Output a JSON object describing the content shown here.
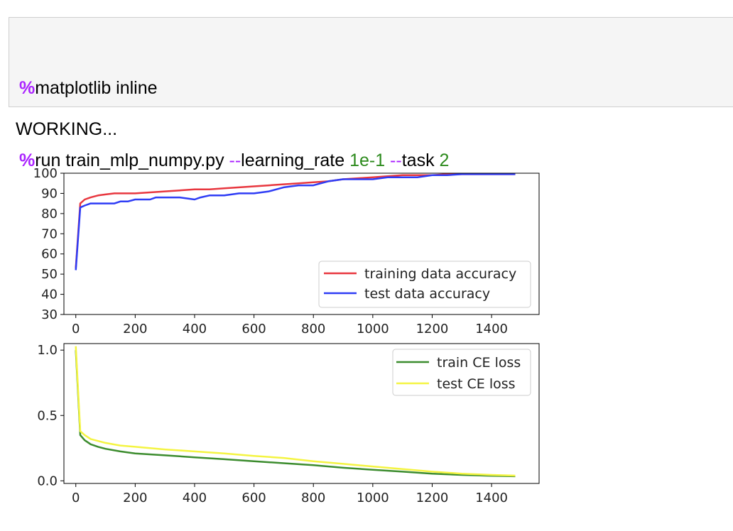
{
  "cell": {
    "line1": {
      "magic": "%",
      "cmd": "matplotlib inline"
    },
    "line2": {
      "magic": "%",
      "cmd": "run train_mlp_numpy.py ",
      "flag1": "--",
      "arg1": "learning_rate ",
      "val1": "1e-1",
      "flag2": " --",
      "arg2": "task ",
      "val2": "2"
    }
  },
  "output": {
    "status_text": "WORKING..."
  },
  "chart_data": [
    {
      "type": "line",
      "xlim": [
        -40,
        1560
      ],
      "ylim": [
        30,
        100
      ],
      "xticks": [
        0,
        200,
        400,
        600,
        800,
        1000,
        1200,
        1400
      ],
      "yticks": [
        30,
        40,
        50,
        60,
        70,
        80,
        90,
        100
      ],
      "legend_position": "lower-right",
      "series": [
        {
          "name": "training data accuracy",
          "color": "#e8373f",
          "x": [
            0,
            15,
            30,
            50,
            75,
            100,
            130,
            150,
            175,
            200,
            250,
            300,
            350,
            400,
            450,
            500,
            550,
            600,
            650,
            700,
            750,
            800,
            850,
            900,
            950,
            1000,
            1050,
            1100,
            1150,
            1200,
            1250,
            1300,
            1350,
            1400,
            1450,
            1480
          ],
          "y": [
            53,
            85,
            87,
            88,
            89,
            89.5,
            90,
            90,
            90,
            90,
            90.5,
            91,
            91.5,
            92,
            92,
            92.5,
            93,
            93.5,
            94,
            94.5,
            95,
            95.5,
            96,
            97,
            97.5,
            98,
            98.5,
            99,
            99,
            99,
            99.5,
            99.5,
            99.5,
            99.5,
            99.5,
            99.5
          ]
        },
        {
          "name": "test data accuracy",
          "color": "#2e3cf5",
          "x": [
            0,
            15,
            30,
            50,
            75,
            100,
            130,
            150,
            175,
            200,
            250,
            270,
            300,
            350,
            400,
            420,
            450,
            500,
            550,
            600,
            650,
            700,
            750,
            800,
            850,
            900,
            950,
            1000,
            1050,
            1100,
            1150,
            1200,
            1250,
            1300,
            1350,
            1400,
            1450,
            1480
          ],
          "y": [
            52,
            83,
            84,
            85,
            85,
            85,
            85,
            86,
            86,
            87,
            87,
            88,
            88,
            88,
            87,
            88,
            89,
            89,
            90,
            90,
            91,
            93,
            94,
            94,
            96,
            97,
            97,
            97,
            98,
            98,
            98,
            99,
            99,
            99.5,
            99.5,
            99.5,
            99.5,
            99.5
          ]
        }
      ]
    },
    {
      "type": "line",
      "xlim": [
        -40,
        1560
      ],
      "ylim": [
        -0.02,
        1.05
      ],
      "xticks": [
        0,
        200,
        400,
        600,
        800,
        1000,
        1200,
        1400
      ],
      "yticks": [
        0.0,
        0.5,
        1.0
      ],
      "ytick_labels": [
        "0.0",
        "0.5",
        "1.0"
      ],
      "legend_position": "upper-right",
      "series": [
        {
          "name": "train CE loss",
          "color": "#3c8c2e",
          "x": [
            0,
            15,
            30,
            50,
            75,
            100,
            150,
            200,
            300,
            400,
            500,
            600,
            700,
            800,
            900,
            1000,
            1100,
            1200,
            1300,
            1400,
            1480
          ],
          "y": [
            1.0,
            0.35,
            0.31,
            0.28,
            0.26,
            0.245,
            0.225,
            0.21,
            0.195,
            0.18,
            0.165,
            0.15,
            0.135,
            0.12,
            0.1,
            0.085,
            0.07,
            0.055,
            0.045,
            0.038,
            0.035
          ]
        },
        {
          "name": "test CE loss",
          "color": "#f4f442",
          "x": [
            0,
            15,
            30,
            50,
            75,
            100,
            150,
            200,
            300,
            400,
            500,
            600,
            700,
            800,
            900,
            1000,
            1100,
            1200,
            1300,
            1400,
            1480
          ],
          "y": [
            1.03,
            0.38,
            0.35,
            0.32,
            0.305,
            0.29,
            0.27,
            0.26,
            0.24,
            0.225,
            0.21,
            0.19,
            0.175,
            0.15,
            0.13,
            0.11,
            0.09,
            0.07,
            0.055,
            0.045,
            0.04
          ]
        }
      ]
    }
  ]
}
